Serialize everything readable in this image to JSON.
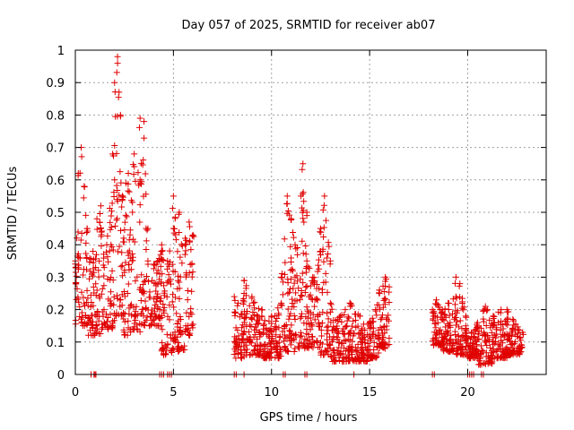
{
  "chart_data": {
    "type": "scatter",
    "title": "Day 057 of 2025, SRMTID for receiver ab07",
    "xlabel": "GPS time / hours",
    "ylabel": "SRMTID / TECUs",
    "xlim": [
      0,
      24
    ],
    "ylim": [
      0,
      1
    ],
    "xticks": [
      0,
      5,
      10,
      15,
      20
    ],
    "xtick_labels": [
      "0",
      "5",
      "10",
      "15",
      "20"
    ],
    "yticks": [
      0,
      0.1,
      0.2,
      0.3,
      0.4,
      0.5,
      0.6,
      0.7,
      0.8,
      0.9,
      1
    ],
    "ytick_labels": [
      "0",
      "0.1",
      "0.2",
      "0.3",
      "0.4",
      "0.5",
      "0.6",
      "0.7",
      "0.8",
      "0.9",
      "1"
    ],
    "grid": true,
    "marker": "+",
    "color": "#e00000",
    "series": [
      {
        "name": "SRMTID",
        "segments": [
          {
            "x_start": 0.0,
            "x_end": 0.6,
            "envelope": [
              [
                0.0,
                0.35
              ],
              [
                0.15,
                0.62
              ],
              [
                0.3,
                0.7
              ],
              [
                0.45,
                0.58
              ],
              [
                0.6,
                0.45
              ]
            ],
            "floor": 0.15
          },
          {
            "x_start": 0.6,
            "x_end": 1.3,
            "envelope": [
              [
                0.6,
                0.45
              ],
              [
                0.9,
                0.38
              ],
              [
                1.1,
                0.48
              ],
              [
                1.3,
                0.52
              ]
            ],
            "floor": 0.12
          },
          {
            "x_start": 1.3,
            "x_end": 2.0,
            "envelope": [
              [
                1.3,
                0.45
              ],
              [
                1.6,
                0.4
              ],
              [
                1.9,
                0.68
              ],
              [
                2.0,
                0.6
              ]
            ],
            "floor": 0.14
          },
          {
            "x_start": 2.0,
            "x_end": 2.4,
            "envelope": [
              [
                2.0,
                0.9
              ],
              [
                2.15,
                0.98
              ],
              [
                2.3,
                0.8
              ],
              [
                2.4,
                0.55
              ]
            ],
            "floor": 0.18
          },
          {
            "x_start": 2.4,
            "x_end": 3.3,
            "envelope": [
              [
                2.4,
                0.55
              ],
              [
                2.7,
                0.62
              ],
              [
                3.0,
                0.68
              ],
              [
                3.3,
                0.6
              ]
            ],
            "floor": 0.12
          },
          {
            "x_start": 3.3,
            "x_end": 3.7,
            "envelope": [
              [
                3.3,
                0.79
              ],
              [
                3.5,
                0.78
              ],
              [
                3.7,
                0.45
              ]
            ],
            "floor": 0.15
          },
          {
            "x_start": 3.7,
            "x_end": 4.4,
            "envelope": [
              [
                3.7,
                0.35
              ],
              [
                4.0,
                0.34
              ],
              [
                4.4,
                0.38
              ]
            ],
            "floor": 0.15
          },
          {
            "x_start": 4.4,
            "x_end": 5.0,
            "envelope": [
              [
                4.4,
                0.4
              ],
              [
                4.7,
                0.35
              ],
              [
                5.0,
                0.45
              ]
            ],
            "floor": 0.06
          },
          {
            "x_start": 5.0,
            "x_end": 5.6,
            "envelope": [
              [
                5.0,
                0.55
              ],
              [
                5.3,
                0.5
              ],
              [
                5.6,
                0.4
              ]
            ],
            "floor": 0.07
          },
          {
            "x_start": 5.6,
            "x_end": 6.0,
            "envelope": [
              [
                5.6,
                0.42
              ],
              [
                5.8,
                0.47
              ],
              [
                6.0,
                0.43
              ]
            ],
            "floor": 0.12
          },
          {
            "x_start": 8.1,
            "x_end": 8.6,
            "envelope": [
              [
                8.1,
                0.24
              ],
              [
                8.3,
                0.22
              ],
              [
                8.6,
                0.25
              ]
            ],
            "floor": 0.05
          },
          {
            "x_start": 8.6,
            "x_end": 9.5,
            "envelope": [
              [
                8.6,
                0.29
              ],
              [
                9.0,
                0.24
              ],
              [
                9.5,
                0.2
              ]
            ],
            "floor": 0.06
          },
          {
            "x_start": 9.5,
            "x_end": 10.5,
            "envelope": [
              [
                9.5,
                0.18
              ],
              [
                10.0,
                0.18
              ],
              [
                10.5,
                0.22
              ]
            ],
            "floor": 0.05
          },
          {
            "x_start": 10.5,
            "x_end": 11.2,
            "envelope": [
              [
                10.5,
                0.3
              ],
              [
                10.8,
                0.55
              ],
              [
                11.0,
                0.48
              ],
              [
                11.2,
                0.4
              ]
            ],
            "floor": 0.07
          },
          {
            "x_start": 11.2,
            "x_end": 11.8,
            "envelope": [
              [
                11.2,
                0.3
              ],
              [
                11.5,
                0.55
              ],
              [
                11.6,
                0.65
              ],
              [
                11.8,
                0.5
              ]
            ],
            "floor": 0.08
          },
          {
            "x_start": 11.8,
            "x_end": 12.5,
            "envelope": [
              [
                11.8,
                0.35
              ],
              [
                12.1,
                0.3
              ],
              [
                12.5,
                0.38
              ]
            ],
            "floor": 0.08
          },
          {
            "x_start": 12.5,
            "x_end": 13.0,
            "envelope": [
              [
                12.5,
                0.45
              ],
              [
                12.7,
                0.55
              ],
              [
                13.0,
                0.35
              ]
            ],
            "floor": 0.06
          },
          {
            "x_start": 13.0,
            "x_end": 14.0,
            "envelope": [
              [
                13.0,
                0.22
              ],
              [
                13.5,
                0.18
              ],
              [
                14.0,
                0.22
              ]
            ],
            "floor": 0.04
          },
          {
            "x_start": 14.0,
            "x_end": 15.0,
            "envelope": [
              [
                14.0,
                0.22
              ],
              [
                14.5,
                0.18
              ],
              [
                15.0,
                0.16
              ]
            ],
            "floor": 0.04
          },
          {
            "x_start": 15.0,
            "x_end": 15.5,
            "envelope": [
              [
                15.0,
                0.16
              ],
              [
                15.3,
                0.2
              ],
              [
                15.5,
                0.26
              ]
            ],
            "floor": 0.05
          },
          {
            "x_start": 15.5,
            "x_end": 16.0,
            "envelope": [
              [
                15.5,
                0.26
              ],
              [
                15.8,
                0.3
              ],
              [
                16.0,
                0.27
              ]
            ],
            "floor": 0.08
          },
          {
            "x_start": 18.2,
            "x_end": 18.7,
            "envelope": [
              [
                18.2,
                0.2
              ],
              [
                18.4,
                0.23
              ],
              [
                18.7,
                0.2
              ]
            ],
            "floor": 0.09
          },
          {
            "x_start": 18.7,
            "x_end": 19.4,
            "envelope": [
              [
                18.7,
                0.2
              ],
              [
                19.0,
                0.22
              ],
              [
                19.4,
                0.24
              ]
            ],
            "floor": 0.07
          },
          {
            "x_start": 19.4,
            "x_end": 19.9,
            "envelope": [
              [
                19.4,
                0.3
              ],
              [
                19.6,
                0.28
              ],
              [
                19.9,
                0.18
              ]
            ],
            "floor": 0.06
          },
          {
            "x_start": 19.9,
            "x_end": 20.5,
            "envelope": [
              [
                19.9,
                0.15
              ],
              [
                20.2,
                0.13
              ],
              [
                20.5,
                0.15
              ]
            ],
            "floor": 0.05
          },
          {
            "x_start": 20.5,
            "x_end": 21.3,
            "envelope": [
              [
                20.5,
                0.16
              ],
              [
                20.9,
                0.21
              ],
              [
                21.3,
                0.18
              ]
            ],
            "floor": 0.03
          },
          {
            "x_start": 21.3,
            "x_end": 22.0,
            "envelope": [
              [
                21.3,
                0.18
              ],
              [
                21.7,
                0.2
              ],
              [
                22.0,
                0.17
              ]
            ],
            "floor": 0.05
          },
          {
            "x_start": 22.0,
            "x_end": 22.8,
            "envelope": [
              [
                22.0,
                0.2
              ],
              [
                22.3,
                0.17
              ],
              [
                22.8,
                0.13
              ]
            ],
            "floor": 0.06
          }
        ],
        "zero_values_x": [
          0.8,
          0.95,
          1.0,
          1.05,
          4.3,
          4.4,
          4.5,
          4.7,
          4.8,
          4.9,
          8.1,
          8.2,
          8.6,
          10.6,
          10.7,
          11.7,
          11.8,
          14.2,
          18.2,
          18.3,
          20.0,
          20.1,
          20.2,
          20.3,
          20.7,
          20.8
        ]
      }
    ]
  }
}
